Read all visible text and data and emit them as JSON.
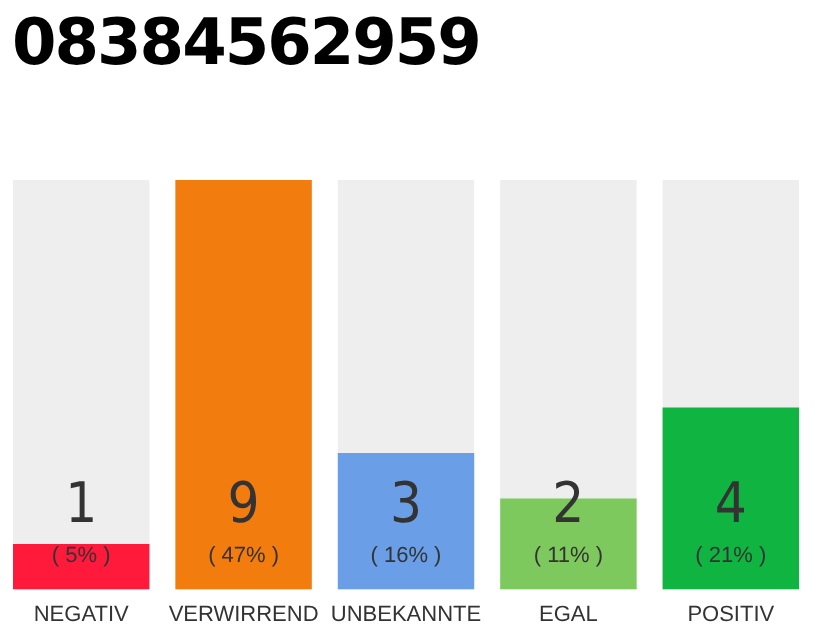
{
  "chart_data": {
    "type": "bar",
    "title": "08384562959",
    "categories": [
      "NEGATIV",
      "VERWIRREND",
      "UNBEKANNTE",
      "EGAL",
      "POSITIV"
    ],
    "values": [
      1,
      9,
      3,
      2,
      4
    ],
    "colors": [
      "#ff1a3c",
      "#f27c0e",
      "#6a9fe8",
      "#7dc95e",
      "#10b541"
    ],
    "tick_labels": "x",
    "legend": false,
    "data_labels": true,
    "annotations": [
      "( 5% )",
      "( 47% )",
      "( 16% )",
      "( 11% )",
      "( 21% )"
    ]
  }
}
